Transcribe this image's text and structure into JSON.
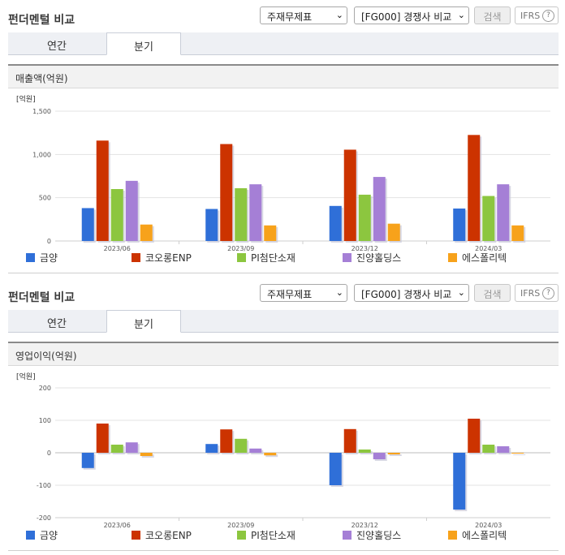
{
  "panels": [
    {
      "title": "펀더멘털 비교",
      "select_statement": "주재무제표",
      "select_compare": "[FG000] 경쟁사 비교",
      "search_label": "검색",
      "ifrs_label": "IFRS",
      "tabs": [
        "연간",
        "분기"
      ],
      "section_title": "매출액(억원)"
    },
    {
      "title": "펀더멘털 비교",
      "select_statement": "주재무제표",
      "select_compare": "[FG000] 경쟁사 비교",
      "search_label": "검색",
      "ifrs_label": "IFRS",
      "tabs": [
        "연간",
        "분기"
      ],
      "section_title": "영업이익(억원)"
    }
  ],
  "colors": {
    "금양": "#2f6fd8",
    "코오롱ENP": "#cc3300",
    "PI첨단소재": "#8cc63f",
    "진양홀딩스": "#a57fd6",
    "에스폴리텍": "#f7a21b"
  },
  "chart_data": [
    {
      "type": "bar",
      "unit_label": "[억원]",
      "categories": [
        "2023/06",
        "2023/09",
        "2023/12",
        "2024/03"
      ],
      "ylim": [
        0,
        1500
      ],
      "yticks": [
        "0",
        "500",
        "1,000",
        "1,500"
      ],
      "ytick_values": [
        0,
        500,
        1000,
        1500
      ],
      "series": [
        {
          "name": "금양",
          "values": [
            380,
            370,
            405,
            375
          ]
        },
        {
          "name": "코오롱ENP",
          "values": [
            1160,
            1120,
            1055,
            1225
          ]
        },
        {
          "name": "PI첨단소재",
          "values": [
            600,
            610,
            535,
            520
          ]
        },
        {
          "name": "진양홀딩스",
          "values": [
            695,
            655,
            740,
            655
          ]
        },
        {
          "name": "에스폴리텍",
          "values": [
            190,
            180,
            200,
            180
          ]
        }
      ]
    },
    {
      "type": "bar",
      "unit_label": "[억원]",
      "categories": [
        "2023/06",
        "2023/09",
        "2023/12",
        "2024/03"
      ],
      "ylim": [
        -200,
        200
      ],
      "yticks": [
        "-200",
        "-100",
        "0",
        "100",
        "200"
      ],
      "ytick_values": [
        -200,
        -100,
        0,
        100,
        200
      ],
      "series": [
        {
          "name": "금양",
          "values": [
            -47,
            27,
            -100,
            -175
          ]
        },
        {
          "name": "코오롱ENP",
          "values": [
            90,
            72,
            73,
            105
          ]
        },
        {
          "name": "PI첨단소재",
          "values": [
            25,
            43,
            10,
            25
          ]
        },
        {
          "name": "진양홀딩스",
          "values": [
            32,
            13,
            -20,
            20
          ]
        },
        {
          "name": "에스폴리텍",
          "values": [
            -10,
            -8,
            -5,
            0
          ]
        }
      ]
    }
  ]
}
